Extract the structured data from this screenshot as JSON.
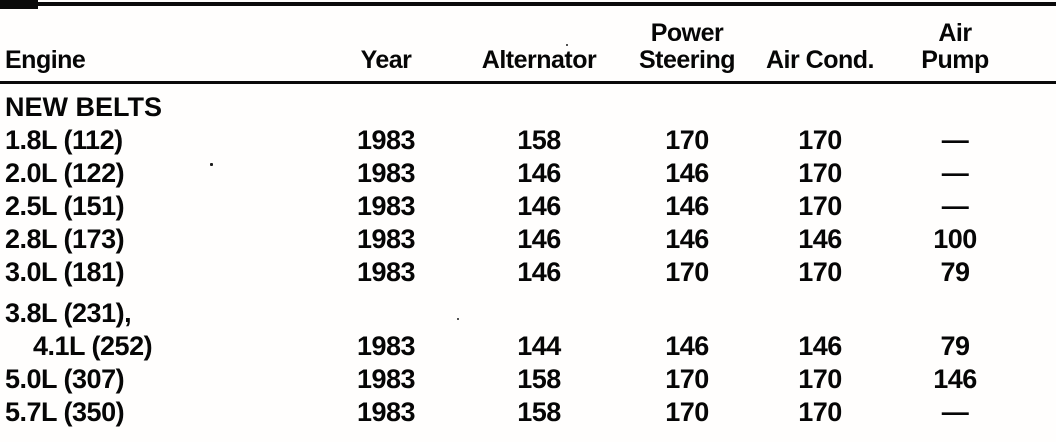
{
  "table": {
    "columns": [
      {
        "label": "Engine"
      },
      {
        "label": "Year"
      },
      {
        "label": "Alternator"
      },
      {
        "label_top": "Power",
        "label": "Steering"
      },
      {
        "label": "Air Cond."
      },
      {
        "label_top": "Air",
        "label": "Pump"
      }
    ],
    "section_header": "NEW BELTS",
    "year_shown": "1983",
    "no_value_symbol": "—",
    "rows": [
      {
        "engine": "1.8L (112)",
        "year": "1983",
        "alternator": "158",
        "power_steering": "170",
        "air_cond": "170",
        "air_pump": "—"
      },
      {
        "engine": "2.0L (122)",
        "year": "1983",
        "alternator": "146",
        "power_steering": "146",
        "air_cond": "170",
        "air_pump": "—"
      },
      {
        "engine": "2.5L (151)",
        "year": "1983",
        "alternator": "146",
        "power_steering": "146",
        "air_cond": "170",
        "air_pump": "—"
      },
      {
        "engine": "2.8L (173)",
        "year": "1983",
        "alternator": "146",
        "power_steering": "146",
        "air_cond": "146",
        "air_pump": "100"
      },
      {
        "engine": "3.0L (181)",
        "year": "1983",
        "alternator": "146",
        "power_steering": "170",
        "air_cond": "170",
        "air_pump": "79"
      },
      {
        "engine": "3.8L (231),",
        "year": "",
        "alternator": "",
        "power_steering": "",
        "air_cond": "",
        "air_pump": ""
      },
      {
        "engine": "4.1L (252)",
        "year": "1983",
        "alternator": "144",
        "power_steering": "146",
        "air_cond": "146",
        "air_pump": "79"
      },
      {
        "engine": "5.0L (307)",
        "year": "1983",
        "alternator": "158",
        "power_steering": "170",
        "air_cond": "170",
        "air_pump": "146"
      },
      {
        "engine": "5.7L (350)",
        "year": "1983",
        "alternator": "158",
        "power_steering": "170",
        "air_cond": "170",
        "air_pump": "—"
      }
    ]
  }
}
